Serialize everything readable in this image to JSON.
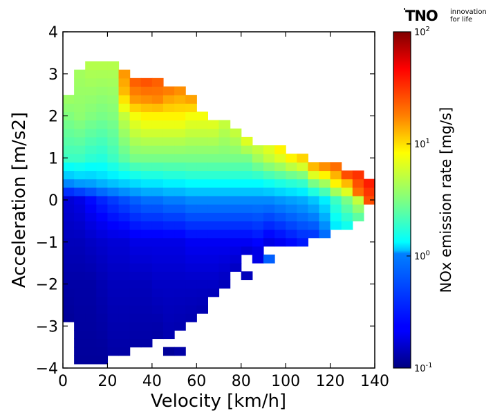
{
  "logo": {
    "word": "TNO",
    "tagline_1": "innovation",
    "tagline_2": "for life"
  },
  "chart_data": {
    "type": "heatmap",
    "title": "",
    "xlabel": "Velocity [km/h]",
    "ylabel": "Acceleration [m/s2]",
    "xlim": [
      0,
      140
    ],
    "ylim": [
      -4,
      4
    ],
    "x_ticks": [
      0,
      20,
      40,
      60,
      80,
      100,
      120,
      140
    ],
    "y_ticks": [
      -4,
      -3,
      -2,
      -1,
      0,
      1,
      2,
      3,
      4
    ],
    "x_tick_labels": [
      "0",
      "20",
      "40",
      "60",
      "80",
      "100",
      "120",
      "140"
    ],
    "y_tick_labels": [
      "−4",
      "−3",
      "−2",
      "−1",
      "0",
      "1",
      "2",
      "3",
      "4"
    ],
    "grid": false,
    "cell_width_kmh": 5,
    "cell_height_ms2": 0.2,
    "colorbar": {
      "label": "NOx emission rate [mg/s]",
      "scale": "log",
      "range": [
        0.1,
        100
      ],
      "colormap": "jet",
      "ticks": [
        {
          "value": 0.1,
          "base": "10",
          "exp": "-1"
        },
        {
          "value": 1,
          "base": "10",
          "exp": "0"
        },
        {
          "value": 10,
          "base": "10",
          "exp": "1"
        },
        {
          "value": 100,
          "base": "10",
          "exp": "2"
        }
      ]
    },
    "columns": [
      {
        "v": 2.5,
        "a_min": -2.8,
        "a_max": 2.4,
        "levels": [
          [
            -2.8,
            0.12
          ],
          [
            -2.0,
            0.13
          ],
          [
            -1.0,
            0.15
          ],
          [
            0.0,
            0.18
          ],
          [
            0.5,
            0.8
          ],
          [
            1.0,
            2.0
          ],
          [
            2.0,
            3.2
          ],
          [
            2.4,
            3.8
          ]
        ]
      },
      {
        "v": 7.5,
        "a_min": -3.8,
        "a_max": 3.0,
        "levels": [
          [
            -3.8,
            0.12
          ],
          [
            -2.0,
            0.13
          ],
          [
            -1.0,
            0.15
          ],
          [
            0.0,
            0.2
          ],
          [
            0.5,
            0.9
          ],
          [
            1.0,
            2.0
          ],
          [
            2.0,
            3.5
          ],
          [
            3.0,
            4.0
          ]
        ]
      },
      {
        "v": 12.5,
        "a_min": -3.8,
        "a_max": 3.2,
        "levels": [
          [
            -3.8,
            0.12
          ],
          [
            -2.0,
            0.13
          ],
          [
            -1.0,
            0.16
          ],
          [
            0.0,
            0.25
          ],
          [
            0.5,
            0.9
          ],
          [
            1.0,
            1.8
          ],
          [
            2.0,
            3.2
          ],
          [
            3.2,
            4.5
          ]
        ]
      },
      {
        "v": 17.5,
        "a_min": -3.8,
        "a_max": 3.2,
        "levels": [
          [
            -3.8,
            0.12
          ],
          [
            -2.0,
            0.14
          ],
          [
            -1.0,
            0.17
          ],
          [
            0.0,
            0.3
          ],
          [
            0.5,
            1.0
          ],
          [
            1.0,
            1.7
          ],
          [
            2.0,
            3.0
          ],
          [
            3.2,
            4.5
          ]
        ]
      },
      {
        "v": 22.5,
        "a_min": -3.6,
        "a_max": 3.2,
        "levels": [
          [
            -3.6,
            0.13
          ],
          [
            -2.0,
            0.15
          ],
          [
            -1.0,
            0.18
          ],
          [
            0.0,
            0.35
          ],
          [
            0.5,
            1.1
          ],
          [
            1.0,
            2.0
          ],
          [
            2.0,
            3.2
          ],
          [
            3.2,
            4.5
          ]
        ]
      },
      {
        "v": 27.5,
        "a_min": -3.6,
        "a_max": 3.0,
        "levels": [
          [
            -3.6,
            0.13
          ],
          [
            -2.0,
            0.15
          ],
          [
            -1.0,
            0.18
          ],
          [
            0.0,
            0.4
          ],
          [
            0.5,
            1.2
          ],
          [
            1.0,
            2.5
          ],
          [
            2.0,
            5.0
          ],
          [
            2.6,
            12.0
          ],
          [
            3.0,
            15.0
          ]
        ]
      },
      {
        "v": 32.5,
        "a_min": -3.4,
        "a_max": 2.8,
        "levels": [
          [
            -3.4,
            0.13
          ],
          [
            -2.0,
            0.15
          ],
          [
            -1.0,
            0.2
          ],
          [
            0.0,
            0.45
          ],
          [
            0.5,
            1.3
          ],
          [
            1.0,
            3.0
          ],
          [
            2.0,
            7.0
          ],
          [
            2.4,
            15.0
          ],
          [
            2.8,
            22.0
          ]
        ]
      },
      {
        "v": 37.5,
        "a_min": -3.4,
        "a_max": 2.8,
        "levels": [
          [
            -3.4,
            0.13
          ],
          [
            -2.0,
            0.15
          ],
          [
            -1.0,
            0.2
          ],
          [
            0.0,
            0.5
          ],
          [
            0.5,
            1.4
          ],
          [
            1.0,
            3.0
          ],
          [
            2.0,
            8.0
          ],
          [
            2.4,
            16.0
          ],
          [
            2.8,
            24.0
          ]
        ]
      },
      {
        "v": 42.5,
        "a_min": -3.2,
        "a_max": 2.8,
        "levels": [
          [
            -3.2,
            0.13
          ],
          [
            -2.0,
            0.16
          ],
          [
            -1.0,
            0.2
          ],
          [
            0.0,
            0.5
          ],
          [
            0.5,
            1.4
          ],
          [
            1.0,
            3.0
          ],
          [
            2.0,
            8.0
          ],
          [
            2.4,
            17.0
          ],
          [
            2.8,
            22.0
          ]
        ]
      },
      {
        "v": 47.5,
        "a_min": -3.2,
        "a_max": 2.6,
        "levels": [
          [
            -3.2,
            0.14
          ],
          [
            -2.0,
            0.16
          ],
          [
            -1.0,
            0.2
          ],
          [
            0.0,
            0.55
          ],
          [
            0.5,
            1.5
          ],
          [
            1.0,
            3.0
          ],
          [
            2.0,
            8.0
          ],
          [
            2.6,
            18.0
          ]
        ]
      },
      {
        "v": 52.5,
        "a_min": -3.0,
        "a_max": 2.6,
        "levels": [
          [
            -3.0,
            0.14
          ],
          [
            -2.0,
            0.16
          ],
          [
            -1.0,
            0.2
          ],
          [
            0.0,
            0.55
          ],
          [
            0.5,
            1.5
          ],
          [
            1.0,
            3.0
          ],
          [
            2.0,
            8.0
          ],
          [
            2.6,
            16.0
          ]
        ]
      },
      {
        "v": 57.5,
        "a_min": -2.8,
        "a_max": 2.4,
        "levels": [
          [
            -2.8,
            0.14
          ],
          [
            -2.0,
            0.16
          ],
          [
            -1.0,
            0.22
          ],
          [
            0.0,
            0.6
          ],
          [
            0.5,
            1.6
          ],
          [
            1.0,
            3.0
          ],
          [
            2.0,
            7.0
          ],
          [
            2.4,
            14.0
          ]
        ]
      },
      {
        "v": 62.5,
        "a_min": -2.6,
        "a_max": 2.0,
        "levels": [
          [
            -2.6,
            0.14
          ],
          [
            -2.0,
            0.16
          ],
          [
            -1.0,
            0.22
          ],
          [
            0.0,
            0.6
          ],
          [
            0.5,
            1.6
          ],
          [
            1.0,
            3.0
          ],
          [
            2.0,
            7.0
          ]
        ]
      },
      {
        "v": 67.5,
        "a_min": -2.2,
        "a_max": 1.8,
        "levels": [
          [
            -2.2,
            0.15
          ],
          [
            -1.0,
            0.22
          ],
          [
            0.0,
            0.6
          ],
          [
            0.5,
            1.6
          ],
          [
            1.0,
            3.0
          ],
          [
            1.8,
            6.0
          ]
        ]
      },
      {
        "v": 72.5,
        "a_min": -2.0,
        "a_max": 1.8,
        "levels": [
          [
            -2.0,
            0.15
          ],
          [
            -1.0,
            0.22
          ],
          [
            0.0,
            0.6
          ],
          [
            0.5,
            1.6
          ],
          [
            1.0,
            3.0
          ],
          [
            1.8,
            5.0
          ]
        ]
      },
      {
        "v": 77.5,
        "a_min": -1.6,
        "a_max": 1.6,
        "levels": [
          [
            -1.6,
            0.16
          ],
          [
            -1.0,
            0.22
          ],
          [
            0.0,
            0.6
          ],
          [
            0.5,
            1.6
          ],
          [
            1.0,
            3.0
          ],
          [
            1.6,
            5.0
          ]
        ]
      },
      {
        "v": 82.5,
        "a_min": -1.2,
        "a_max": 1.4,
        "levels": [
          [
            -1.2,
            0.18
          ],
          [
            0.0,
            0.6
          ],
          [
            0.5,
            1.6
          ],
          [
            1.0,
            3.0
          ],
          [
            1.4,
            6.0
          ]
        ]
      },
      {
        "v": 87.5,
        "a_min": -1.2,
        "a_max": 1.2,
        "levels": [
          [
            -1.2,
            0.2
          ],
          [
            0.0,
            0.6
          ],
          [
            0.5,
            1.6
          ],
          [
            1.0,
            4.0
          ],
          [
            1.2,
            5.0
          ]
        ]
      },
      {
        "v": 92.5,
        "a_min": -1.0,
        "a_max": 1.2,
        "levels": [
          [
            -1.0,
            0.2
          ],
          [
            0.0,
            0.6
          ],
          [
            0.5,
            1.8
          ],
          [
            1.0,
            5.0
          ],
          [
            1.2,
            6.0
          ]
        ]
      },
      {
        "v": 97.5,
        "a_min": -1.0,
        "a_max": 1.2,
        "levels": [
          [
            -1.0,
            0.22
          ],
          [
            0.0,
            0.65
          ],
          [
            0.5,
            2.0
          ],
          [
            1.0,
            6.0
          ],
          [
            1.2,
            8.0
          ]
        ]
      },
      {
        "v": 102.5,
        "a_min": -1.0,
        "a_max": 1.0,
        "levels": [
          [
            -1.0,
            0.25
          ],
          [
            0.0,
            0.7
          ],
          [
            0.5,
            2.2
          ],
          [
            1.0,
            8.0
          ]
        ]
      },
      {
        "v": 107.5,
        "a_min": -1.0,
        "a_max": 1.0,
        "levels": [
          [
            -1.0,
            0.28
          ],
          [
            0.0,
            0.75
          ],
          [
            0.5,
            2.4
          ],
          [
            1.0,
            10.0
          ]
        ]
      },
      {
        "v": 112.5,
        "a_min": -0.8,
        "a_max": 0.8,
        "levels": [
          [
            -0.8,
            0.35
          ],
          [
            0.0,
            0.9
          ],
          [
            0.4,
            3.0
          ],
          [
            0.8,
            12.0
          ]
        ]
      },
      {
        "v": 117.5,
        "a_min": -0.8,
        "a_max": 0.8,
        "levels": [
          [
            -0.8,
            0.5
          ],
          [
            0.0,
            1.2
          ],
          [
            0.4,
            4.0
          ],
          [
            0.8,
            16.0
          ]
        ]
      },
      {
        "v": 122.5,
        "a_min": -0.6,
        "a_max": 0.8,
        "levels": [
          [
            -0.6,
            1.2
          ],
          [
            0.0,
            2.0
          ],
          [
            0.4,
            8.0
          ],
          [
            0.8,
            20.0
          ]
        ]
      },
      {
        "v": 127.5,
        "a_min": -0.6,
        "a_max": 0.6,
        "levels": [
          [
            -0.6,
            1.5
          ],
          [
            0.0,
            3.0
          ],
          [
            0.4,
            12.0
          ],
          [
            0.6,
            25.0
          ]
        ]
      },
      {
        "v": 132.5,
        "a_min": -0.4,
        "a_max": 0.6,
        "levels": [
          [
            -0.4,
            2.5
          ],
          [
            0.0,
            5.0
          ],
          [
            0.2,
            20.0
          ],
          [
            0.6,
            30.0
          ]
        ]
      },
      {
        "v": 137.5,
        "a_min": 0.0,
        "a_max": 0.4,
        "levels": [
          [
            0.0,
            25.0
          ],
          [
            0.4,
            35.0
          ]
        ]
      }
    ],
    "extra_cells": [
      {
        "v": 47.5,
        "a": -3.6,
        "value": 0.12
      },
      {
        "v": 52.5,
        "a": -3.6,
        "value": 0.13
      },
      {
        "v": 82.5,
        "a": -1.8,
        "value": 0.15
      },
      {
        "v": 87.5,
        "a": -1.4,
        "value": 0.2
      },
      {
        "v": 92.5,
        "a": -1.4,
        "value": 0.45
      }
    ]
  }
}
